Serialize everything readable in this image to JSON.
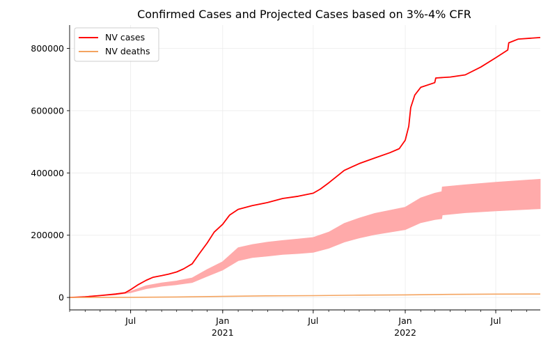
{
  "chart_data": {
    "type": "line",
    "title": "Confirmed Cases and Projected Cases based on 3%-4% CFR",
    "xlabel": "",
    "ylabel": "",
    "x_range": [
      "2020-03-01",
      "2022-09-28"
    ],
    "ylim": [
      -40000,
      875000
    ],
    "y_ticks": [
      0,
      200000,
      400000,
      600000,
      800000
    ],
    "y_tick_labels": [
      "0",
      "200000",
      "400000",
      "600000",
      "800000"
    ],
    "x_ticks": [
      {
        "date": "2020-07-01",
        "label": "Jul",
        "sublabel": ""
      },
      {
        "date": "2021-01-01",
        "label": "Jan",
        "sublabel": "2021"
      },
      {
        "date": "2021-07-01",
        "label": "Jul",
        "sublabel": ""
      },
      {
        "date": "2022-01-01",
        "label": "Jan",
        "sublabel": "2022"
      },
      {
        "date": "2022-07-01",
        "label": "Jul",
        "sublabel": ""
      }
    ],
    "grid": true,
    "legend_position": "top-left",
    "series": [
      {
        "name": "NV cases",
        "color": "#ff0000",
        "points": [
          [
            "2020-03-01",
            0
          ],
          [
            "2020-04-01",
            2000
          ],
          [
            "2020-05-01",
            6000
          ],
          [
            "2020-06-01",
            11000
          ],
          [
            "2020-06-20",
            15000
          ],
          [
            "2020-07-01",
            25000
          ],
          [
            "2020-07-15",
            40000
          ],
          [
            "2020-08-01",
            55000
          ],
          [
            "2020-08-15",
            65000
          ],
          [
            "2020-09-01",
            70000
          ],
          [
            "2020-09-15",
            75000
          ],
          [
            "2020-10-01",
            82000
          ],
          [
            "2020-10-15",
            92000
          ],
          [
            "2020-11-01",
            108000
          ],
          [
            "2020-11-15",
            140000
          ],
          [
            "2020-12-01",
            175000
          ],
          [
            "2020-12-15",
            210000
          ],
          [
            "2021-01-01",
            235000
          ],
          [
            "2021-01-15",
            265000
          ],
          [
            "2021-02-01",
            283000
          ],
          [
            "2021-03-01",
            295000
          ],
          [
            "2021-04-01",
            305000
          ],
          [
            "2021-05-01",
            318000
          ],
          [
            "2021-06-01",
            325000
          ],
          [
            "2021-07-01",
            335000
          ],
          [
            "2021-07-15",
            348000
          ],
          [
            "2021-08-01",
            368000
          ],
          [
            "2021-09-01",
            408000
          ],
          [
            "2021-10-01",
            430000
          ],
          [
            "2021-11-01",
            448000
          ],
          [
            "2021-12-01",
            465000
          ],
          [
            "2021-12-20",
            478000
          ],
          [
            "2022-01-01",
            505000
          ],
          [
            "2022-01-08",
            550000
          ],
          [
            "2022-01-12",
            610000
          ],
          [
            "2022-01-20",
            650000
          ],
          [
            "2022-02-01",
            675000
          ],
          [
            "2022-03-01",
            690000
          ],
          [
            "2022-03-03",
            705000
          ],
          [
            "2022-04-01",
            708000
          ],
          [
            "2022-05-01",
            715000
          ],
          [
            "2022-06-01",
            740000
          ],
          [
            "2022-07-01",
            770000
          ],
          [
            "2022-07-25",
            795000
          ],
          [
            "2022-07-27",
            818000
          ],
          [
            "2022-08-15",
            830000
          ],
          [
            "2022-09-28",
            835000
          ]
        ]
      },
      {
        "name": "NV deaths",
        "color": "#f4a460",
        "points": [
          [
            "2020-03-01",
            0
          ],
          [
            "2020-07-01",
            600
          ],
          [
            "2020-10-01",
            1600
          ],
          [
            "2021-01-01",
            3500
          ],
          [
            "2021-04-01",
            5200
          ],
          [
            "2021-07-01",
            5800
          ],
          [
            "2021-10-01",
            7400
          ],
          [
            "2022-01-01",
            8400
          ],
          [
            "2022-04-01",
            10000
          ],
          [
            "2022-07-01",
            10700
          ],
          [
            "2022-09-28",
            11100
          ]
        ]
      }
    ],
    "projection_band": {
      "description": "deaths / CFR between 3% and 4%",
      "color": "#ffaaaa",
      "upper_points": [
        [
          "2020-03-01",
          0
        ],
        [
          "2020-06-01",
          10000
        ],
        [
          "2020-07-01",
          20000
        ],
        [
          "2020-08-01",
          38000
        ],
        [
          "2020-09-01",
          47000
        ],
        [
          "2020-10-01",
          53000
        ],
        [
          "2020-11-01",
          63000
        ],
        [
          "2020-12-01",
          90000
        ],
        [
          "2021-01-01",
          115000
        ],
        [
          "2021-02-01",
          160000
        ],
        [
          "2021-03-01",
          170000
        ],
        [
          "2021-04-01",
          178000
        ],
        [
          "2021-05-01",
          183000
        ],
        [
          "2021-06-01",
          188000
        ],
        [
          "2021-07-01",
          193000
        ],
        [
          "2021-08-01",
          210000
        ],
        [
          "2021-09-01",
          238000
        ],
        [
          "2021-10-01",
          255000
        ],
        [
          "2021-11-01",
          270000
        ],
        [
          "2021-12-01",
          280000
        ],
        [
          "2022-01-01",
          290000
        ],
        [
          "2022-02-01",
          320000
        ],
        [
          "2022-03-01",
          335000
        ],
        [
          "2022-03-15",
          340000
        ],
        [
          "2022-03-16",
          355000
        ],
        [
          "2022-05-01",
          362000
        ],
        [
          "2022-07-01",
          370000
        ],
        [
          "2022-09-28",
          380000
        ]
      ],
      "lower_points": [
        [
          "2020-03-01",
          0
        ],
        [
          "2020-06-01",
          8000
        ],
        [
          "2020-07-01",
          15000
        ],
        [
          "2020-08-01",
          28000
        ],
        [
          "2020-09-01",
          36000
        ],
        [
          "2020-10-01",
          41000
        ],
        [
          "2020-11-01",
          48000
        ],
        [
          "2020-12-01",
          68000
        ],
        [
          "2021-01-01",
          88000
        ],
        [
          "2021-02-01",
          118000
        ],
        [
          "2021-03-01",
          128000
        ],
        [
          "2021-04-01",
          133000
        ],
        [
          "2021-05-01",
          138000
        ],
        [
          "2021-06-01",
          141000
        ],
        [
          "2021-07-01",
          145000
        ],
        [
          "2021-08-01",
          158000
        ],
        [
          "2021-09-01",
          178000
        ],
        [
          "2021-10-01",
          191000
        ],
        [
          "2021-11-01",
          202000
        ],
        [
          "2021-12-01",
          210000
        ],
        [
          "2022-01-01",
          218000
        ],
        [
          "2022-02-01",
          240000
        ],
        [
          "2022-03-01",
          250000
        ],
        [
          "2022-03-15",
          253000
        ],
        [
          "2022-03-16",
          265000
        ],
        [
          "2022-05-01",
          272000
        ],
        [
          "2022-07-01",
          278000
        ],
        [
          "2022-09-28",
          285000
        ]
      ]
    }
  }
}
